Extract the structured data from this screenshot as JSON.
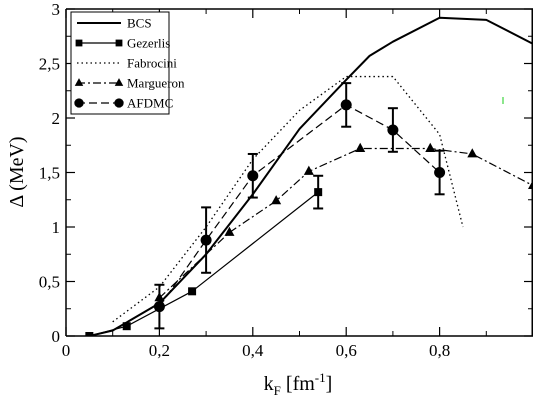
{
  "chart_data": {
    "type": "line",
    "xlabel": "k_F [fm^-1]",
    "xlabel_main": "k",
    "xlabel_sub": "F",
    "xlabel_unit_open": " [fm",
    "xlabel_unit_sup": "-1",
    "xlabel_unit_close": "]",
    "ylabel": "Δ (MeV)",
    "xlim": [
      0,
      1.0
    ],
    "ylim": [
      0,
      3
    ],
    "x_ticks": [
      0,
      0.2,
      0.4,
      0.6,
      0.8
    ],
    "x_tick_labels": [
      "0",
      "0,2",
      "0,4",
      "0,6",
      "0,8"
    ],
    "y_ticks": [
      0,
      0.5,
      1,
      1.5,
      2,
      2.5,
      3
    ],
    "y_tick_labels": [
      "0",
      "0,5",
      "1",
      "1,5",
      "2",
      "2,5",
      "3"
    ],
    "grid": false,
    "legend_position": "top-left",
    "series": [
      {
        "name": "BCS",
        "style": "solid",
        "stroke_width": 2,
        "marker": "none",
        "x": [
          0.05,
          0.1,
          0.2,
          0.3,
          0.4,
          0.5,
          0.6,
          0.65,
          0.7,
          0.8,
          0.9,
          1.0
        ],
        "y": [
          0.0,
          0.05,
          0.3,
          0.75,
          1.3,
          1.9,
          2.35,
          2.57,
          2.7,
          2.92,
          2.9,
          2.68
        ]
      },
      {
        "name": "Gezerlis",
        "style": "solid",
        "stroke_width": 1.2,
        "marker": "square",
        "x": [
          0.05,
          0.13,
          0.27,
          0.54
        ],
        "y": [
          0.0,
          0.09,
          0.41,
          1.32
        ],
        "yerr": [
          0,
          0,
          0,
          0.15
        ]
      },
      {
        "name": "Fabrocini",
        "style": "dotted",
        "stroke_width": 1.3,
        "marker": "none",
        "x": [
          0.1,
          0.2,
          0.3,
          0.4,
          0.5,
          0.6,
          0.7,
          0.8,
          0.85
        ],
        "y": [
          0.13,
          0.45,
          1.0,
          1.62,
          2.07,
          2.38,
          2.38,
          1.85,
          1.0
        ]
      },
      {
        "name": "Margueron",
        "style": "dashdot",
        "stroke_width": 1.2,
        "marker": "triangle",
        "x": [
          0.2,
          0.35,
          0.45,
          0.52,
          0.63,
          0.78,
          0.87,
          1.0
        ],
        "y": [
          0.35,
          0.95,
          1.24,
          1.51,
          1.72,
          1.72,
          1.67,
          1.38
        ]
      },
      {
        "name": "AFDMC",
        "style": "dashed",
        "stroke_width": 1.2,
        "marker": "circle",
        "x": [
          0.2,
          0.3,
          0.4,
          0.6,
          0.7,
          0.8
        ],
        "y": [
          0.27,
          0.88,
          1.47,
          2.12,
          1.89,
          1.5
        ],
        "yerr": [
          0.2,
          0.3,
          0.2,
          0.2,
          0.2,
          0.2
        ]
      }
    ],
    "colors": {
      "all_series": "#000000",
      "stray_mark": "#66dd66"
    }
  }
}
